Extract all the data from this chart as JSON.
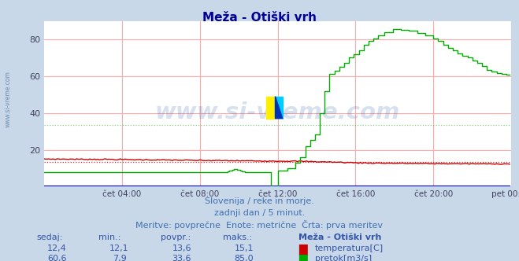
{
  "title": "Meža - Otiški vrh",
  "bg_color": "#c8d8e8",
  "plot_bg_color": "#ffffff",
  "grid_color_h": "#ffaaaa",
  "grid_color_v": "#ffcccc",
  "xlabel_ticks": [
    "čet 04:00",
    "čet 08:00",
    "čet 12:00",
    "čet 16:00",
    "čet 20:00",
    "pet 00:00"
  ],
  "xlim": [
    0,
    288
  ],
  "ylim": [
    0,
    90
  ],
  "yticks": [
    20,
    40,
    60,
    80
  ],
  "watermark": "www.si-vreme.com",
  "watermark_color": "#2255aa",
  "watermark_alpha": 0.18,
  "subtitle1": "Slovenija / reke in morje.",
  "subtitle2": "zadnji dan / 5 minut.",
  "subtitle3": "Meritve: povprečne  Enote: metrične  Črta: prva meritev",
  "subtitle_color": "#4070b0",
  "footer_headers": [
    "sedaj:",
    "min.:",
    "povpr.:",
    "maks.:",
    "Meža - Otiški vrh"
  ],
  "temp_row": [
    "12,4",
    "12,1",
    "13,6",
    "15,1",
    "temperatura[C]"
  ],
  "flow_row": [
    "60,6",
    "7,9",
    "33,6",
    "85,0",
    "pretok[m3/s]"
  ],
  "temp_color": "#cc0000",
  "flow_color": "#00aa00",
  "blue_color": "#0000dd",
  "footer_text_color": "#3355aa",
  "title_color": "#000099",
  "n_points": 288,
  "temp_avg": 13.6,
  "flow_avg": 33.6
}
